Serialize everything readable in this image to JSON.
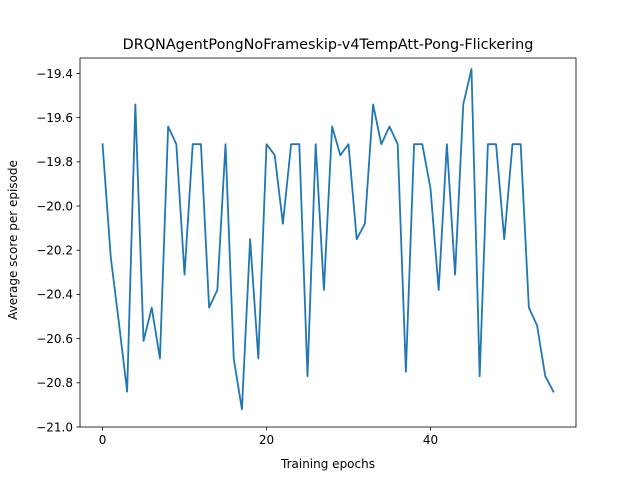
{
  "chart_data": {
    "type": "line",
    "title": "DRQNAgentPongNoFrameskip-v4TempAtt-Pong-Flickering",
    "xlabel": "Training epochs",
    "ylabel": "Average score per episode",
    "xlim": [
      -2.75,
      57.75
    ],
    "ylim": [
      -21.0,
      -19.33
    ],
    "xticks": [
      0,
      20,
      40
    ],
    "yticks": [
      -21.0,
      -20.8,
      -20.6,
      -20.4,
      -20.2,
      -20.0,
      -19.8,
      -19.6,
      -19.4
    ],
    "grid": false,
    "line_color": "#1f77b4",
    "series": [
      {
        "x": [
          0,
          1,
          2,
          3,
          4,
          5,
          6,
          7,
          8,
          9,
          10,
          11,
          12,
          13,
          14,
          15,
          16,
          17,
          18,
          19,
          20,
          21,
          22,
          23,
          24,
          25,
          26,
          27,
          28,
          29,
          30,
          31,
          32,
          33,
          34,
          35,
          36,
          37,
          38,
          39,
          40,
          41,
          42,
          43,
          44,
          45,
          46,
          47,
          48,
          49,
          50,
          51,
          52,
          53,
          54,
          55
        ],
        "values": [
          -19.72,
          -20.23,
          -20.53,
          -20.84,
          -19.54,
          -20.61,
          -20.46,
          -20.69,
          -19.64,
          -19.72,
          -20.31,
          -19.72,
          -19.72,
          -20.46,
          -20.38,
          -19.72,
          -20.69,
          -20.92,
          -20.15,
          -20.69,
          -19.72,
          -19.77,
          -20.08,
          -19.72,
          -19.72,
          -20.77,
          -19.72,
          -20.38,
          -19.64,
          -19.77,
          -19.72,
          -20.15,
          -20.08,
          -19.54,
          -19.72,
          -19.64,
          -19.72,
          -20.75,
          -19.72,
          -19.72,
          -19.92,
          -20.38,
          -19.72,
          -20.31,
          -19.54,
          -19.38,
          -20.77,
          -19.72,
          -19.72,
          -20.15,
          -19.72,
          -19.72,
          -20.46,
          -20.54,
          -20.77,
          -20.84
        ]
      }
    ]
  }
}
